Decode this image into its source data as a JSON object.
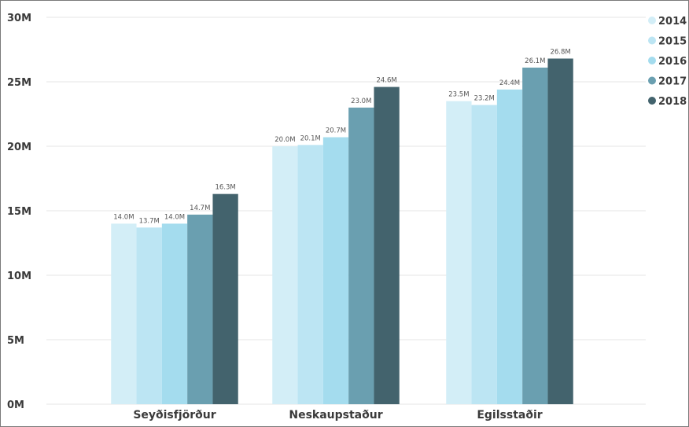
{
  "chart_data": {
    "type": "bar",
    "categories": [
      "Seyðisfjörður",
      "Neskaupstaður",
      "Egilsstaðir"
    ],
    "series": [
      {
        "name": "2014",
        "color": "#d3eef7",
        "values": [
          14.0,
          20.0,
          23.5
        ],
        "labels": [
          "14.0M",
          "20.0M",
          "23.5M"
        ]
      },
      {
        "name": "2015",
        "color": "#bce5f3",
        "values": [
          13.7,
          20.1,
          23.2
        ],
        "labels": [
          "13.7M",
          "20.1M",
          "23.2M"
        ]
      },
      {
        "name": "2016",
        "color": "#a4dcee",
        "values": [
          14.0,
          20.7,
          24.4
        ],
        "labels": [
          "14.0M",
          "20.7M",
          "24.4M"
        ]
      },
      {
        "name": "2017",
        "color": "#6a9fb0",
        "values": [
          14.7,
          23.0,
          26.1
        ],
        "labels": [
          "14.7M",
          "23.0M",
          "26.1M"
        ]
      },
      {
        "name": "2018",
        "color": "#43636d",
        "values": [
          16.3,
          24.6,
          26.8
        ],
        "labels": [
          "16.3M",
          "24.6M",
          "26.8M"
        ]
      }
    ],
    "yticks": [
      0,
      5,
      10,
      15,
      20,
      25,
      30
    ],
    "ytick_labels": [
      "0M",
      "5M",
      "10M",
      "15M",
      "20M",
      "25M",
      "30M"
    ],
    "ylim": [
      0,
      30
    ],
    "unit": "M",
    "title": "",
    "xlabel": "",
    "ylabel": "",
    "legend_position": "top-right",
    "grid": true
  }
}
